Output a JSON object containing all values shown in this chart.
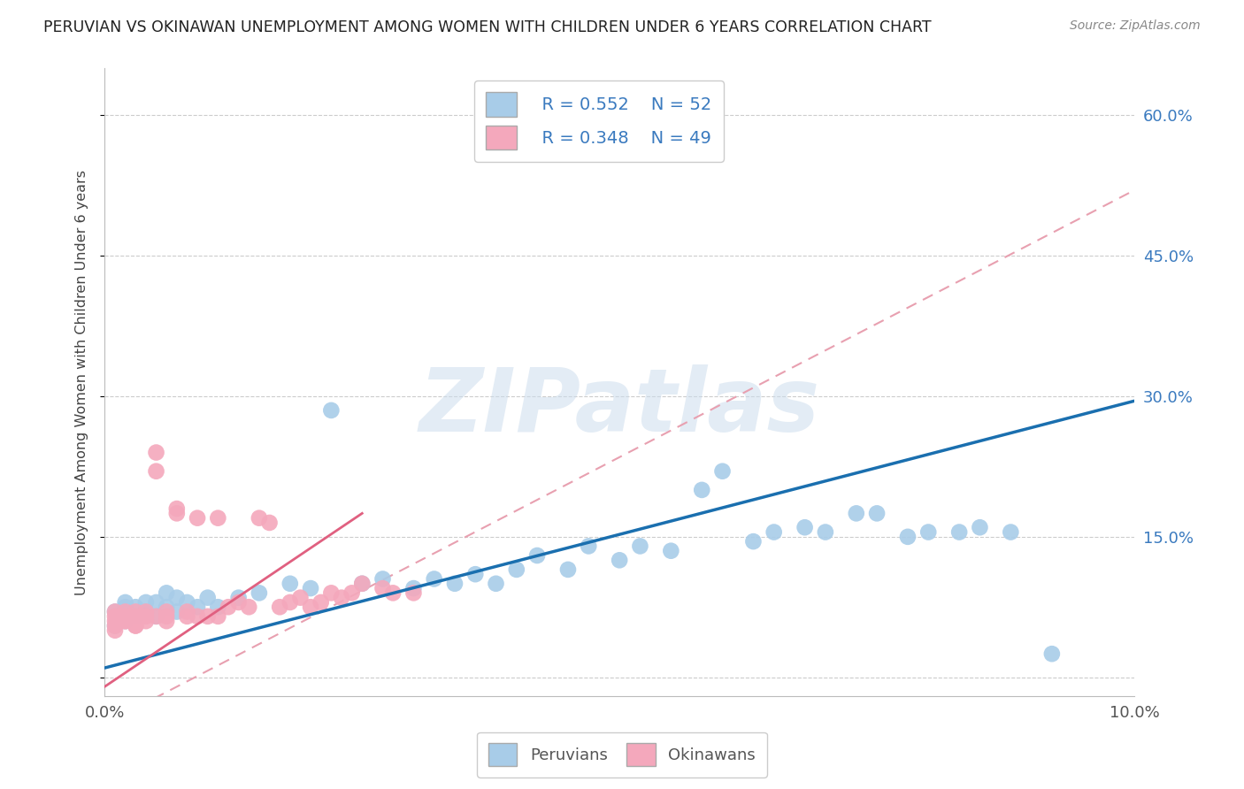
{
  "title": "PERUVIAN VS OKINAWAN UNEMPLOYMENT AMONG WOMEN WITH CHILDREN UNDER 6 YEARS CORRELATION CHART",
  "source": "Source: ZipAtlas.com",
  "ylabel": "Unemployment Among Women with Children Under 6 years",
  "watermark": "ZIPatlas",
  "xlim": [
    0.0,
    0.1
  ],
  "ylim": [
    -0.02,
    0.65
  ],
  "xticks": [
    0.0,
    0.02,
    0.04,
    0.06,
    0.08,
    0.1
  ],
  "yticks": [
    0.0,
    0.15,
    0.3,
    0.45,
    0.6
  ],
  "xticklabels": [
    "0.0%",
    "",
    "",
    "",
    "",
    "10.0%"
  ],
  "yticklabels_right": [
    "",
    "15.0%",
    "30.0%",
    "45.0%",
    "60.0%"
  ],
  "legend_blue_r": "R = 0.552",
  "legend_blue_n": "N = 52",
  "legend_pink_r": "R = 0.348",
  "legend_pink_n": "N = 49",
  "blue_color": "#a8cce8",
  "pink_color": "#f4a8bc",
  "blue_line_color": "#1a6faf",
  "pink_line_color": "#e06080",
  "pink_dashed_color": "#e8a0b0",
  "legend_text_color": "#3a7abf",
  "peruvians_x": [
    0.001,
    0.001,
    0.002,
    0.002,
    0.002,
    0.003,
    0.003,
    0.004,
    0.004,
    0.005,
    0.005,
    0.006,
    0.006,
    0.007,
    0.007,
    0.008,
    0.009,
    0.01,
    0.011,
    0.013,
    0.015,
    0.018,
    0.02,
    0.022,
    0.025,
    0.027,
    0.03,
    0.032,
    0.034,
    0.036,
    0.038,
    0.04,
    0.042,
    0.045,
    0.047,
    0.05,
    0.052,
    0.055,
    0.058,
    0.06,
    0.063,
    0.065,
    0.068,
    0.07,
    0.073,
    0.075,
    0.078,
    0.08,
    0.083,
    0.085,
    0.088,
    0.092
  ],
  "peruvians_y": [
    0.055,
    0.07,
    0.06,
    0.075,
    0.08,
    0.065,
    0.075,
    0.07,
    0.08,
    0.065,
    0.08,
    0.075,
    0.09,
    0.07,
    0.085,
    0.08,
    0.075,
    0.085,
    0.075,
    0.085,
    0.09,
    0.1,
    0.095,
    0.285,
    0.1,
    0.105,
    0.095,
    0.105,
    0.1,
    0.11,
    0.1,
    0.115,
    0.13,
    0.115,
    0.14,
    0.125,
    0.14,
    0.135,
    0.2,
    0.22,
    0.145,
    0.155,
    0.16,
    0.155,
    0.175,
    0.175,
    0.15,
    0.155,
    0.155,
    0.16,
    0.155,
    0.025
  ],
  "okinawans_x": [
    0.001,
    0.001,
    0.001,
    0.001,
    0.001,
    0.002,
    0.002,
    0.002,
    0.002,
    0.003,
    0.003,
    0.003,
    0.003,
    0.003,
    0.004,
    0.004,
    0.004,
    0.005,
    0.005,
    0.005,
    0.006,
    0.006,
    0.006,
    0.007,
    0.007,
    0.008,
    0.008,
    0.009,
    0.009,
    0.01,
    0.011,
    0.011,
    0.012,
    0.013,
    0.014,
    0.015,
    0.016,
    0.017,
    0.018,
    0.019,
    0.02,
    0.021,
    0.022,
    0.023,
    0.024,
    0.025,
    0.027,
    0.028,
    0.03
  ],
  "okinawans_y": [
    0.05,
    0.06,
    0.07,
    0.065,
    0.055,
    0.06,
    0.065,
    0.07,
    0.06,
    0.055,
    0.065,
    0.07,
    0.06,
    0.055,
    0.07,
    0.065,
    0.06,
    0.24,
    0.22,
    0.065,
    0.07,
    0.065,
    0.06,
    0.18,
    0.175,
    0.065,
    0.07,
    0.065,
    0.17,
    0.065,
    0.17,
    0.065,
    0.075,
    0.08,
    0.075,
    0.17,
    0.165,
    0.075,
    0.08,
    0.085,
    0.075,
    0.08,
    0.09,
    0.085,
    0.09,
    0.1,
    0.095,
    0.09,
    0.09
  ],
  "blue_regline_x": [
    0.0,
    0.1
  ],
  "blue_regline_y": [
    0.01,
    0.295
  ],
  "pink_solidline_x": [
    0.0,
    0.025
  ],
  "pink_solidline_y": [
    -0.01,
    0.175
  ],
  "pink_dashline_x": [
    0.0,
    0.1
  ],
  "pink_dashline_y": [
    -0.05,
    0.52
  ]
}
